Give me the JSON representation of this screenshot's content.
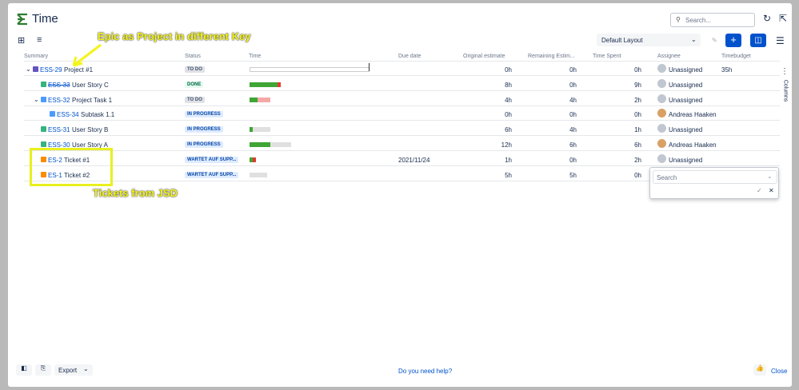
{
  "header": {
    "title": "Time",
    "search_placeholder": "Search..."
  },
  "toolbar": {
    "layout": "Default Layout"
  },
  "annotations": [
    "Epic as Project in different Key",
    "Tickets from JSD"
  ],
  "table": {
    "columns": [
      "Summary",
      "Status",
      "Time",
      "Due date",
      "Original estimate",
      "Remaining Estim...",
      "Time Spent",
      "Assignee",
      "Timebudget"
    ],
    "rows": [
      {
        "key": "ESS-29",
        "summary": "Project #1",
        "status": "TO DO",
        "original": "0h",
        "remaining": "0h",
        "spent": "0h",
        "assignee": "Unassigned",
        "budget": "35h"
      },
      {
        "key": "ESS-33",
        "summary": "User Story C",
        "status": "DONE",
        "original": "8h",
        "remaining": "0h",
        "spent": "9h",
        "assignee": "Unassigned"
      },
      {
        "key": "ESS-32",
        "summary": "Project Task 1",
        "status": "TO DO",
        "original": "4h",
        "remaining": "4h",
        "spent": "2h",
        "assignee": "Unassigned"
      },
      {
        "key": "ESS-34",
        "summary": "Subtask 1.1",
        "status": "IN PROGRESS",
        "original": "0h",
        "remaining": "0h",
        "spent": "0h",
        "assignee": "Andreas Haaken"
      },
      {
        "key": "ESS-31",
        "summary": "User Story B",
        "status": "IN PROGRESS",
        "original": "6h",
        "remaining": "4h",
        "spent": "1h",
        "assignee": "Unassigned"
      },
      {
        "key": "ESS-30",
        "summary": "User Story A",
        "status": "IN PROGRESS",
        "original": "12h",
        "remaining": "6h",
        "spent": "6h",
        "assignee": "Andreas Haaken"
      },
      {
        "key": "ES-2",
        "summary": "Ticket #1",
        "status": "WARTET AUF SUPP...",
        "due": "2021/11/24",
        "original": "1h",
        "remaining": "0h",
        "spent": "2h",
        "assignee": "Unassigned"
      },
      {
        "key": "ES-1",
        "summary": "Ticket #2",
        "status": "WARTET AUF SUPP...",
        "original": "5h",
        "remaining": "5h",
        "spent": "0h"
      }
    ]
  },
  "side_panel": {
    "label": "Columns"
  },
  "popup": {
    "search_placeholder": "Search"
  },
  "footer": {
    "export": "Export",
    "help": "Do you need help?",
    "close": "Close"
  }
}
